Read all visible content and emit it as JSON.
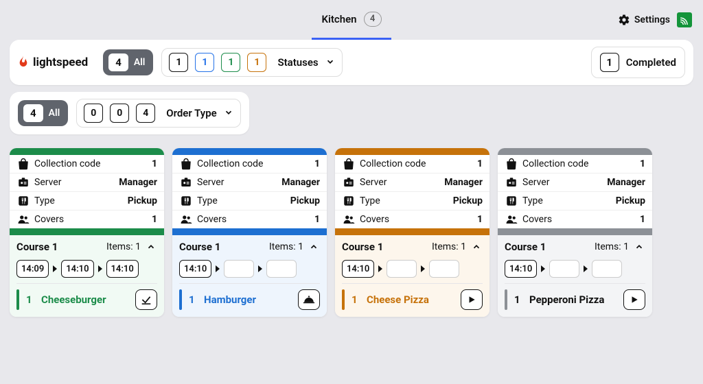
{
  "tabs": {
    "kitchen": "Kitchen",
    "count": "4"
  },
  "settings_label": "Settings",
  "brand": "lightspeed",
  "allpill": {
    "count": "4",
    "label": "All"
  },
  "status_filter": {
    "label": "Statuses",
    "items": [
      {
        "n": "1",
        "color": "#111111"
      },
      {
        "n": "1",
        "color": "#2472e8"
      },
      {
        "n": "1",
        "color": "#1c8c4a"
      },
      {
        "n": "1",
        "color": "#c6720a"
      }
    ]
  },
  "completed": {
    "count": "1",
    "label": "Completed"
  },
  "type_pill": {
    "count": "4",
    "label": "All"
  },
  "type_filter": {
    "label": "Order Type",
    "items": [
      {
        "n": "0",
        "color": "#111111"
      },
      {
        "n": "0",
        "color": "#111111"
      },
      {
        "n": "4",
        "color": "#111111"
      }
    ]
  },
  "labels": {
    "collection": "Collection code",
    "server": "Server",
    "type": "Type",
    "covers": "Covers",
    "items_prefix": "Items: "
  },
  "cards": [
    {
      "strip": "#1c8c4a",
      "body_bg": "#f1faf4",
      "accent": "#1c8c4a",
      "text_color": "#1c8c4a",
      "collection": "1",
      "server": "Manager",
      "type": "Pickup",
      "covers": "1",
      "course": "Course 1",
      "items": "1",
      "times": [
        "14:09",
        "14:10",
        "14:10"
      ],
      "item_qty": "1",
      "item_name": "Cheeseburger",
      "action": "check"
    },
    {
      "strip": "#1d6fd1",
      "body_bg": "#eef5fd",
      "accent": "#1d6fd1",
      "text_color": "#1d6fd1",
      "collection": "1",
      "server": "Manager",
      "type": "Pickup",
      "covers": "1",
      "course": "Course 1",
      "items": "1",
      "times": [
        "14:10",
        "",
        ""
      ],
      "item_qty": "1",
      "item_name": "Hamburger",
      "action": "cloche"
    },
    {
      "strip": "#c6720a",
      "body_bg": "#fdf6ec",
      "accent": "#c6720a",
      "text_color": "#c6720a",
      "collection": "1",
      "server": "Manager",
      "type": "Pickup",
      "covers": "1",
      "course": "Course 1",
      "items": "1",
      "times": [
        "14:10",
        "",
        ""
      ],
      "item_qty": "1",
      "item_name": "Cheese Pizza",
      "action": "play"
    },
    {
      "strip": "#8c9096",
      "body_bg": "#f3f4f6",
      "accent": "#8c9096",
      "text_color": "#111111",
      "collection": "1",
      "server": "Manager",
      "type": "Pickup",
      "covers": "1",
      "course": "Course 1",
      "items": "1",
      "times": [
        "14:10",
        "",
        ""
      ],
      "item_qty": "1",
      "item_name": "Pepperoni Pizza",
      "action": "play"
    }
  ]
}
